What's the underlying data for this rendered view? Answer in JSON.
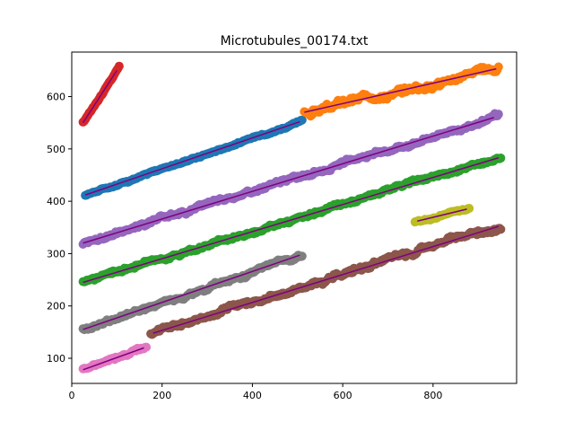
{
  "chart_data": {
    "type": "scatter",
    "title": "Microtubules_00174.txt",
    "xlabel": "",
    "ylabel": "",
    "xlim": [
      0,
      985
    ],
    "ylim": [
      52,
      685
    ],
    "x_ticks": [
      0,
      200,
      400,
      600,
      800
    ],
    "y_ticks": [
      100,
      200,
      300,
      400,
      500,
      600
    ],
    "grid": false,
    "fit_line_color": "#800080",
    "series": [
      {
        "color": "#d62728",
        "x_range": [
          25,
          105
        ],
        "y_range": [
          548,
          662
        ],
        "fit": [
          [
            25,
            550
          ],
          [
            100,
            650
          ]
        ]
      },
      {
        "color": "#1f77b4",
        "x_range": [
          30,
          510
        ],
        "y_range": [
          410,
          560
        ],
        "fit": [
          [
            30,
            412
          ],
          [
            505,
            552
          ]
        ]
      },
      {
        "color": "#ff7f0e",
        "x_range": [
          515,
          945
        ],
        "y_range": [
          545,
          662
        ],
        "fit": [
          [
            515,
            570
          ],
          [
            940,
            653
          ]
        ]
      },
      {
        "color": "#9467bd",
        "x_range": [
          25,
          945
        ],
        "y_range": [
          318,
          578
        ],
        "fit": [
          [
            25,
            320
          ],
          [
            935,
            560
          ]
        ]
      },
      {
        "color": "#2ca02c",
        "x_range": [
          25,
          950
        ],
        "y_range": [
          230,
          485
        ],
        "fit": [
          [
            25,
            245
          ],
          [
            945,
            483
          ]
        ]
      },
      {
        "color": "#bcbd22",
        "x_range": [
          760,
          880
        ],
        "y_range": [
          358,
          392
        ],
        "fit": [
          [
            765,
            362
          ],
          [
            875,
            385
          ]
        ]
      },
      {
        "color": "#7f7f7f",
        "x_range": [
          25,
          510
        ],
        "y_range": [
          145,
          305
        ],
        "fit": [
          [
            25,
            155
          ],
          [
            505,
            297
          ]
        ]
      },
      {
        "color": "#8c564b",
        "x_range": [
          175,
          950
        ],
        "y_range": [
          128,
          358
        ],
        "fit": [
          [
            180,
            148
          ],
          [
            945,
            352
          ]
        ]
      },
      {
        "color": "#e377c2",
        "x_range": [
          25,
          165
        ],
        "y_range": [
          72,
          130
        ],
        "fit": [
          [
            25,
            78
          ],
          [
            160,
            120
          ]
        ]
      }
    ]
  }
}
